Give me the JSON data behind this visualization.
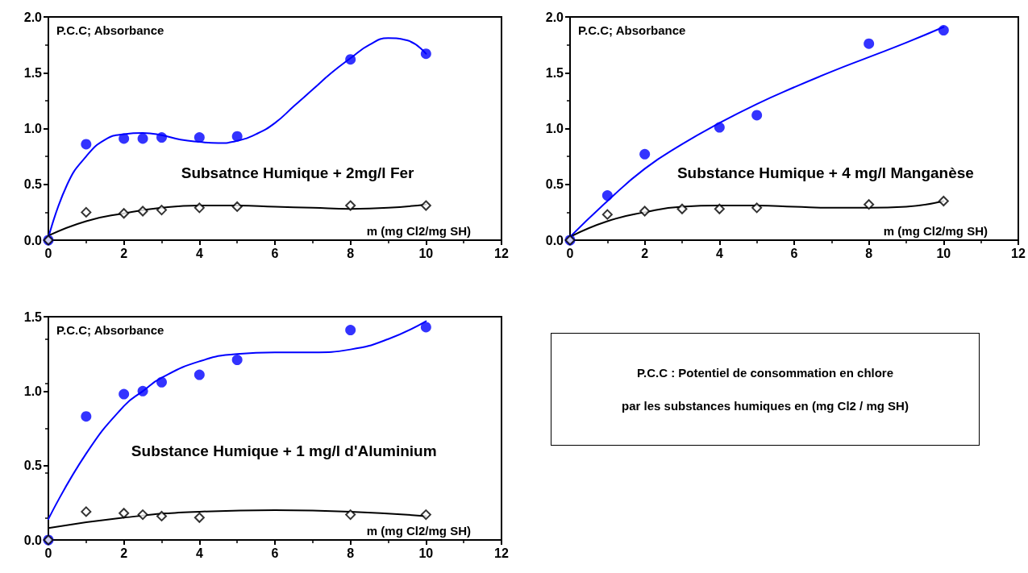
{
  "chart_data": [
    {
      "type": "scatter",
      "title": "Subsatnce Humique + 2mg/l Fer",
      "xlabel": "m (mg Cl2/mg SH)",
      "ylabel": "P.C.C; Absorbance",
      "xlim": [
        0,
        12
      ],
      "xticks": [
        0,
        2,
        4,
        6,
        8,
        10,
        12
      ],
      "ylim": [
        0,
        2
      ],
      "yticks": [
        {
          "value": 0,
          "label": "0.0"
        },
        {
          "value": 0.5,
          "label": "0.5"
        },
        {
          "value": 1,
          "label": "1.0"
        },
        {
          "value": 1.5,
          "label": "1.5"
        },
        {
          "value": 2,
          "label": "2.0"
        }
      ],
      "grid": false,
      "series": [
        {
          "type": "scatter",
          "marker": "circle",
          "color": "#0000ff",
          "x": [
            0,
            1,
            2,
            2.5,
            3,
            4,
            5,
            8,
            10
          ],
          "values": [
            0,
            0.86,
            0.91,
            0.91,
            0.92,
            0.92,
            0.93,
            1.62,
            1.67
          ]
        },
        {
          "type": "scatter",
          "marker": "diamond",
          "color": "#000000",
          "x": [
            0,
            1,
            2,
            2.5,
            3,
            4,
            5,
            8,
            10
          ],
          "values": [
            0,
            0.25,
            0.24,
            0.26,
            0.27,
            0.29,
            0.3,
            0.31,
            0.31
          ]
        },
        {
          "type": "line",
          "marker": "none",
          "line_style": "solid",
          "color": "#0000ff",
          "x": [
            0,
            0.5,
            1,
            1.5,
            2,
            2.5,
            3,
            3.5,
            4,
            4.5,
            5,
            5.5,
            6,
            6.5,
            7,
            7.5,
            8,
            8.5,
            9,
            9.5,
            10
          ],
          "values": [
            0.02,
            0.5,
            0.75,
            0.9,
            0.95,
            0.96,
            0.94,
            0.9,
            0.88,
            0.87,
            0.89,
            0.95,
            1.05,
            1.2,
            1.35,
            1.5,
            1.63,
            1.75,
            1.81,
            1.79,
            1.67
          ]
        },
        {
          "type": "line",
          "marker": "none",
          "line_style": "solid",
          "color": "#000000",
          "x": [
            0,
            1,
            2,
            3,
            4,
            5,
            6,
            7,
            8,
            9,
            10
          ],
          "values": [
            0.04,
            0.17,
            0.24,
            0.29,
            0.31,
            0.31,
            0.3,
            0.29,
            0.28,
            0.29,
            0.32
          ]
        }
      ]
    },
    {
      "type": "scatter",
      "title": "Substance Humique + 4 mg/l Manganèse",
      "xlabel": "m (mg Cl2/mg SH)",
      "ylabel": "P.C.C; Absorbance",
      "xlim": [
        0,
        12
      ],
      "xticks": [
        0,
        2,
        4,
        6,
        8,
        10,
        12
      ],
      "ylim": [
        0,
        2
      ],
      "yticks": [
        {
          "value": 0,
          "label": "0.0"
        },
        {
          "value": 0.5,
          "label": "0.5"
        },
        {
          "value": 1,
          "label": "1.0"
        },
        {
          "value": 1.5,
          "label": "1.5"
        },
        {
          "value": 2,
          "label": "2.0"
        }
      ],
      "grid": false,
      "series": [
        {
          "type": "scatter",
          "marker": "circle",
          "color": "#0000ff",
          "x": [
            0,
            1,
            2,
            4,
            5,
            8,
            10
          ],
          "values": [
            0,
            0.4,
            0.77,
            1.01,
            1.12,
            1.76,
            1.88
          ]
        },
        {
          "type": "scatter",
          "marker": "diamond",
          "color": "#000000",
          "x": [
            0,
            1,
            2,
            3,
            4,
            5,
            8,
            10
          ],
          "values": [
            0,
            0.23,
            0.26,
            0.28,
            0.28,
            0.29,
            0.32,
            0.35
          ]
        },
        {
          "type": "line",
          "marker": "none",
          "line_style": "solid",
          "color": "#0000ff",
          "x": [
            0,
            1,
            2,
            3,
            4,
            5,
            6,
            7,
            8,
            9,
            10
          ],
          "values": [
            0.03,
            0.35,
            0.64,
            0.86,
            1.05,
            1.22,
            1.37,
            1.51,
            1.64,
            1.77,
            1.91
          ]
        },
        {
          "type": "line",
          "marker": "none",
          "line_style": "solid",
          "color": "#000000",
          "x": [
            0,
            1,
            2,
            3,
            4,
            5,
            6,
            7,
            8,
            9,
            10
          ],
          "values": [
            0.03,
            0.17,
            0.25,
            0.3,
            0.31,
            0.31,
            0.3,
            0.29,
            0.29,
            0.3,
            0.35
          ]
        }
      ]
    },
    {
      "type": "scatter",
      "title": "Substance Humique + 1 mg/l d'Aluminium",
      "xlabel": "m (mg Cl2/mg SH)",
      "ylabel": "P.C.C; Absorbance",
      "xlim": [
        0,
        12
      ],
      "xticks": [
        0,
        2,
        4,
        6,
        8,
        10,
        12
      ],
      "ylim": [
        0,
        1.5
      ],
      "yticks": [
        {
          "value": 0,
          "label": "0.0"
        },
        {
          "value": 0.5,
          "label": "0.5"
        },
        {
          "value": 1,
          "label": "1.0"
        },
        {
          "value": 1.5,
          "label": "1.5"
        }
      ],
      "grid": false,
      "series": [
        {
          "type": "scatter",
          "marker": "circle",
          "color": "#0000ff",
          "x": [
            0,
            1,
            2,
            2.5,
            3,
            4,
            5,
            8,
            10
          ],
          "values": [
            0,
            0.83,
            0.98,
            1.0,
            1.06,
            1.11,
            1.21,
            1.41,
            1.43
          ]
        },
        {
          "type": "scatter",
          "marker": "diamond",
          "color": "#000000",
          "x": [
            0,
            1,
            2,
            2.5,
            3,
            4,
            8,
            10
          ],
          "values": [
            0,
            0.19,
            0.18,
            0.17,
            0.16,
            0.15,
            0.17,
            0.17
          ]
        },
        {
          "type": "line",
          "marker": "none",
          "line_style": "solid",
          "color": "#0000ff",
          "x": [
            0,
            1,
            2,
            2.5,
            3,
            4,
            5,
            6,
            7,
            8,
            9,
            10
          ],
          "values": [
            0.14,
            0.58,
            0.9,
            1.0,
            1.09,
            1.2,
            1.25,
            1.26,
            1.26,
            1.28,
            1.35,
            1.47
          ]
        },
        {
          "type": "line",
          "marker": "none",
          "line_style": "solid",
          "color": "#000000",
          "x": [
            0,
            2,
            4,
            6,
            8,
            10
          ],
          "values": [
            0.08,
            0.15,
            0.19,
            0.2,
            0.19,
            0.16
          ]
        }
      ]
    },
    {
      "type": "other",
      "annotations": [
        "P.C.C : Potentiel de consommation en chlore",
        "par les substances humiques en (mg Cl2 / mg SH)"
      ]
    }
  ]
}
